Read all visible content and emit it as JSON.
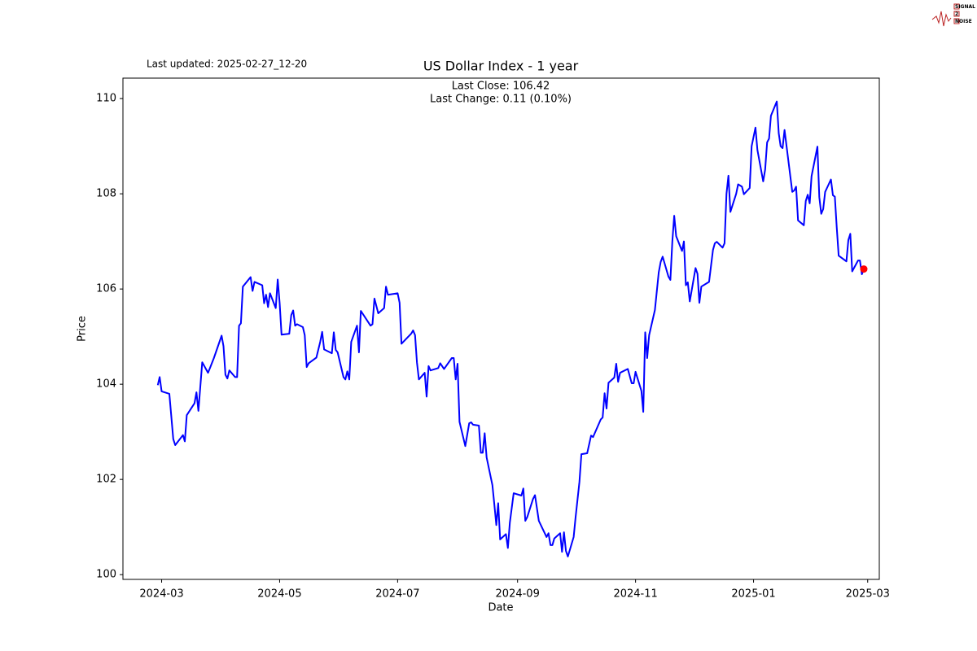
{
  "chart_data": {
    "type": "line",
    "title": "US Dollar Index - 1 year",
    "updated": "Last updated: 2025-02-27_12-20",
    "annotations": [
      "Last Close: 106.42",
      "Last Change: 0.11 (0.10%)"
    ],
    "logo": [
      "SIGNAL",
      "2",
      "NOISE"
    ],
    "x_label": "Date",
    "y_label": "Price",
    "color": "blue",
    "last_marker_color": "red",
    "xlim": [
      "2024-02-10",
      "2025-03-07"
    ],
    "xticks": [
      "2024-03",
      "2024-05",
      "2024-07",
      "2024-09",
      "2024-11",
      "2025-01",
      "2025-03"
    ],
    "ylim": [
      99.9,
      110.43
    ],
    "yticks": [
      100,
      102,
      104,
      106,
      108,
      110
    ],
    "x": [
      "2024-02-28",
      "2024-02-29",
      "2024-03-01",
      "2024-03-05",
      "2024-03-07",
      "2024-03-08",
      "2024-03-12",
      "2024-03-13",
      "2024-03-14",
      "2024-03-18",
      "2024-03-19",
      "2024-03-20",
      "2024-03-22",
      "2024-03-25",
      "2024-03-26",
      "2024-03-28",
      "2024-04-01",
      "2024-04-02",
      "2024-04-03",
      "2024-04-04",
      "2024-04-05",
      "2024-04-08",
      "2024-04-09",
      "2024-04-10",
      "2024-04-11",
      "2024-04-12",
      "2024-04-16",
      "2024-04-17",
      "2024-04-18",
      "2024-04-22",
      "2024-04-23",
      "2024-04-24",
      "2024-04-25",
      "2024-04-26",
      "2024-04-29",
      "2024-04-30",
      "2024-05-01",
      "2024-05-02",
      "2024-05-06",
      "2024-05-07",
      "2024-05-08",
      "2024-05-09",
      "2024-05-10",
      "2024-05-13",
      "2024-05-14",
      "2024-05-15",
      "2024-05-16",
      "2024-05-20",
      "2024-05-22",
      "2024-05-23",
      "2024-05-24",
      "2024-05-28",
      "2024-05-29",
      "2024-05-30",
      "2024-05-31",
      "2024-06-03",
      "2024-06-04",
      "2024-06-05",
      "2024-06-06",
      "2024-06-07",
      "2024-06-10",
      "2024-06-11",
      "2024-06-12",
      "2024-06-17",
      "2024-06-18",
      "2024-06-19",
      "2024-06-21",
      "2024-06-24",
      "2024-06-25",
      "2024-06-26",
      "2024-07-01",
      "2024-07-02",
      "2024-07-03",
      "2024-07-08",
      "2024-07-09",
      "2024-07-10",
      "2024-07-11",
      "2024-07-12",
      "2024-07-15",
      "2024-07-16",
      "2024-07-17",
      "2024-07-18",
      "2024-07-22",
      "2024-07-23",
      "2024-07-25",
      "2024-07-29",
      "2024-07-30",
      "2024-07-31",
      "2024-08-01",
      "2024-08-02",
      "2024-08-05",
      "2024-08-07",
      "2024-08-08",
      "2024-08-09",
      "2024-08-12",
      "2024-08-13",
      "2024-08-14",
      "2024-08-15",
      "2024-08-16",
      "2024-08-19",
      "2024-08-20",
      "2024-08-21",
      "2024-08-22",
      "2024-08-23",
      "2024-08-26",
      "2024-08-27",
      "2024-08-28",
      "2024-08-30",
      "2024-09-03",
      "2024-09-04",
      "2024-09-05",
      "2024-09-06",
      "2024-09-09",
      "2024-09-10",
      "2024-09-12",
      "2024-09-16",
      "2024-09-17",
      "2024-09-18",
      "2024-09-19",
      "2024-09-20",
      "2024-09-23",
      "2024-09-24",
      "2024-09-25",
      "2024-09-26",
      "2024-09-27",
      "2024-09-30",
      "2024-10-01",
      "2024-10-03",
      "2024-10-04",
      "2024-10-07",
      "2024-10-09",
      "2024-10-10",
      "2024-10-14",
      "2024-10-15",
      "2024-10-16",
      "2024-10-17",
      "2024-10-18",
      "2024-10-21",
      "2024-10-22",
      "2024-10-23",
      "2024-10-24",
      "2024-10-28",
      "2024-10-30",
      "2024-10-31",
      "2024-11-01",
      "2024-11-04",
      "2024-11-05",
      "2024-11-06",
      "2024-11-07",
      "2024-11-08",
      "2024-11-11",
      "2024-11-13",
      "2024-11-14",
      "2024-11-15",
      "2024-11-18",
      "2024-11-19",
      "2024-11-20",
      "2024-11-21",
      "2024-11-22",
      "2024-11-25",
      "2024-11-26",
      "2024-11-27",
      "2024-11-28",
      "2024-11-29",
      "2024-12-02",
      "2024-12-03",
      "2024-12-04",
      "2024-12-05",
      "2024-12-09",
      "2024-12-11",
      "2024-12-12",
      "2024-12-13",
      "2024-12-16",
      "2024-12-17",
      "2024-12-18",
      "2024-12-19",
      "2024-12-20",
      "2024-12-23",
      "2024-12-24",
      "2024-12-26",
      "2024-12-27",
      "2024-12-30",
      "2024-12-31",
      "2025-01-02",
      "2025-01-03",
      "2025-01-06",
      "2025-01-07",
      "2025-01-08",
      "2025-01-09",
      "2025-01-10",
      "2025-01-13",
      "2025-01-14",
      "2025-01-15",
      "2025-01-16",
      "2025-01-17",
      "2025-01-21",
      "2025-01-22",
      "2025-01-23",
      "2025-01-24",
      "2025-01-27",
      "2025-01-28",
      "2025-01-29",
      "2025-01-30",
      "2025-01-31",
      "2025-02-03",
      "2025-02-04",
      "2025-02-05",
      "2025-02-06",
      "2025-02-07",
      "2025-02-10",
      "2025-02-11",
      "2025-02-12",
      "2025-02-13",
      "2025-02-14",
      "2025-02-18",
      "2025-02-19",
      "2025-02-20",
      "2025-02-21",
      "2025-02-24",
      "2025-02-25",
      "2025-02-26",
      "2025-02-27"
    ],
    "values": [
      103.98,
      104.15,
      103.85,
      103.8,
      102.85,
      102.72,
      102.93,
      102.8,
      103.35,
      103.6,
      103.83,
      103.44,
      104.46,
      104.24,
      104.34,
      104.55,
      105.02,
      104.8,
      104.2,
      104.12,
      104.29,
      104.15,
      104.15,
      105.23,
      105.28,
      106.05,
      106.25,
      105.96,
      106.15,
      106.08,
      105.7,
      105.88,
      105.62,
      105.91,
      105.6,
      106.2,
      105.7,
      105.04,
      105.06,
      105.45,
      105.55,
      105.23,
      105.26,
      105.2,
      105.03,
      104.36,
      104.44,
      104.56,
      104.89,
      105.1,
      104.73,
      104.65,
      105.09,
      104.72,
      104.67,
      104.15,
      104.1,
      104.27,
      104.1,
      104.89,
      105.23,
      104.67,
      105.54,
      105.23,
      105.26,
      105.8,
      105.49,
      105.6,
      106.05,
      105.88,
      105.91,
      105.71,
      104.85,
      105.06,
      105.13,
      105.03,
      104.46,
      104.1,
      104.24,
      103.74,
      104.38,
      104.29,
      104.34,
      104.44,
      104.32,
      104.55,
      104.55,
      104.1,
      104.43,
      103.21,
      102.7,
      103.18,
      103.2,
      103.15,
      103.13,
      102.56,
      102.56,
      102.97,
      102.46,
      101.88,
      101.47,
      101.04,
      101.5,
      100.74,
      100.85,
      100.56,
      101.09,
      101.71,
      101.66,
      101.81,
      101.13,
      101.21,
      101.59,
      101.67,
      101.13,
      100.79,
      100.87,
      100.62,
      100.62,
      100.76,
      100.87,
      100.48,
      100.89,
      100.5,
      100.38,
      100.79,
      101.21,
      101.95,
      102.53,
      102.55,
      102.92,
      102.89,
      103.26,
      103.3,
      103.81,
      103.49,
      104.03,
      104.14,
      104.43,
      104.05,
      104.24,
      104.32,
      104.02,
      104.02,
      104.26,
      103.86,
      103.42,
      105.09,
      104.55,
      105.03,
      105.56,
      106.35,
      106.57,
      106.68,
      106.26,
      106.19,
      107.0,
      107.54,
      107.11,
      106.8,
      107.0,
      106.08,
      106.14,
      105.74,
      106.44,
      106.32,
      105.71,
      106.05,
      106.15,
      106.82,
      106.96,
      106.99,
      106.87,
      106.96,
      108.0,
      108.38,
      107.62,
      108.0,
      108.2,
      108.15,
      107.99,
      108.12,
      109.0,
      109.39,
      108.92,
      108.26,
      108.51,
      109.08,
      109.16,
      109.64,
      109.94,
      109.27,
      109.0,
      108.96,
      109.34,
      108.04,
      108.07,
      108.15,
      107.44,
      107.34,
      107.85,
      107.98,
      107.8,
      108.37,
      108.99,
      107.93,
      107.58,
      107.68,
      108.04,
      108.3,
      107.97,
      107.94,
      107.3,
      106.7,
      106.58,
      107.03,
      107.16,
      106.37,
      106.6,
      106.6,
      106.31,
      106.42
    ]
  }
}
